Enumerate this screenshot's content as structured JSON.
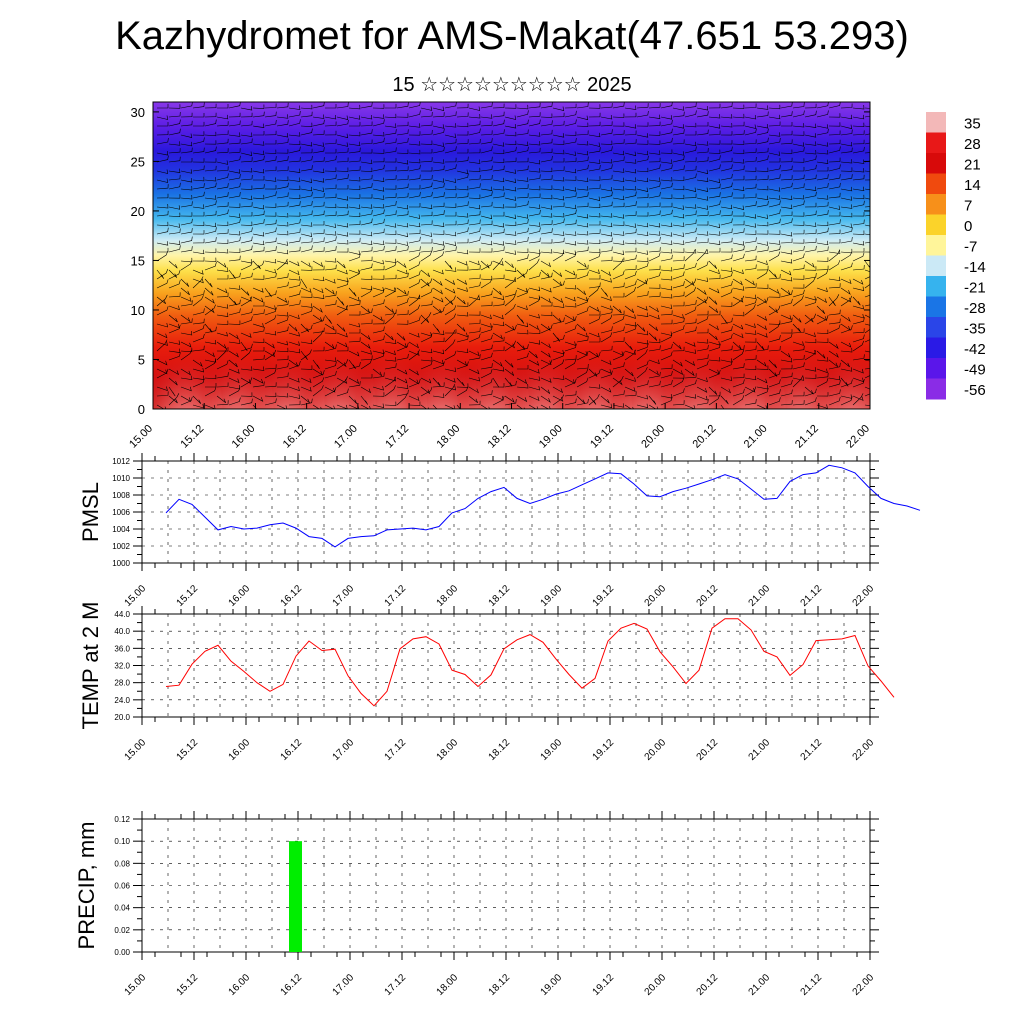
{
  "header": {
    "title": "Kazhydromet for AMS-Makat(47.651 53.293)",
    "subtitle": "15 ☆☆☆☆☆☆☆☆☆ 2025"
  },
  "chart_data": [
    {
      "type": "heatmap",
      "name": "temperature-cross-section",
      "x_labels": [
        "15.00",
        "15.12",
        "16.00",
        "16.12",
        "17.00",
        "17.12",
        "18.00",
        "18.12",
        "19.00",
        "19.12",
        "20.00",
        "20.12",
        "21.00",
        "21.12",
        "22.00"
      ],
      "y_ticks": [
        "0",
        "5",
        "10",
        "15",
        "20",
        "25",
        "30"
      ],
      "ylim": [
        0,
        31
      ],
      "colorbar_labels": [
        "35",
        "28",
        "21",
        "14",
        "7",
        "0",
        "-7",
        "-14",
        "-21",
        "-28",
        "-35",
        "-42",
        "-49",
        "-56"
      ],
      "colorbar_colors": [
        "#f3b8b8",
        "#e81818",
        "#d80a0a",
        "#f04a0e",
        "#f7901a",
        "#fbd32a",
        "#fff59a",
        "#cbe9f6",
        "#36b3ee",
        "#1a75e6",
        "#2a45e8",
        "#2a1ae6",
        "#5a16ea",
        "#8a2ce6"
      ],
      "wind_barbs": true
    },
    {
      "type": "line",
      "name": "pmsl",
      "ylabel": "PMSL",
      "ylim": [
        1000,
        1012
      ],
      "y_ticks": [
        "1000",
        "1002",
        "1004",
        "1006",
        "1008",
        "1010",
        "1012"
      ],
      "x_labels": [
        "15.00",
        "15.12",
        "16.00",
        "16.12",
        "17.00",
        "17.12",
        "18.00",
        "18.12",
        "19.00",
        "19.12",
        "20.00",
        "20.12",
        "21.00",
        "21.12",
        "22.00"
      ],
      "color": "#0000ff",
      "values": [
        1005.9,
        1007.5,
        1006.9,
        1005.4,
        1003.9,
        1004.3,
        1004.0,
        1004.1,
        1004.5,
        1004.7,
        1004.1,
        1003.1,
        1002.9,
        1001.9,
        1002.9,
        1003.1,
        1003.2,
        1003.9,
        1004.0,
        1004.1,
        1003.9,
        1004.3,
        1005.9,
        1006.4,
        1007.6,
        1008.4,
        1008.9,
        1007.6,
        1007.0,
        1007.5,
        1008.1,
        1008.5,
        1009.2,
        1009.9,
        1010.6,
        1010.5,
        1009.3,
        1007.9,
        1007.8,
        1008.4,
        1008.8,
        1009.3,
        1009.8,
        1010.4,
        1009.9,
        1008.7,
        1007.5,
        1007.6,
        1009.6,
        1010.4,
        1010.6,
        1011.5,
        1011.2,
        1010.6,
        1009.0,
        1007.6,
        1007.0,
        1006.7,
        1006.2
      ]
    },
    {
      "type": "line",
      "name": "temp-2m",
      "ylabel": "TEMP at 2 M",
      "ylim": [
        20,
        44
      ],
      "y_ticks": [
        "20.0",
        "24.0",
        "28.0",
        "32.0",
        "36.0",
        "40.0",
        "44.0"
      ],
      "x_labels": [
        "15.00",
        "15.12",
        "16.00",
        "16.12",
        "17.00",
        "17.12",
        "18.00",
        "18.12",
        "19.00",
        "19.12",
        "20.00",
        "20.12",
        "21.00",
        "21.12",
        "22.00"
      ],
      "color": "#ff0000",
      "values": [
        27.1,
        27.4,
        32.3,
        35.3,
        36.7,
        33.0,
        30.6,
        28.0,
        26.0,
        27.6,
        34.2,
        37.7,
        35.5,
        35.8,
        29.6,
        25.5,
        22.6,
        26.0,
        35.9,
        38.2,
        38.7,
        37.0,
        30.9,
        29.9,
        27.1,
        29.8,
        35.9,
        38.0,
        39.2,
        37.4,
        33.5,
        29.9,
        26.7,
        29.0,
        37.7,
        40.7,
        41.8,
        40.5,
        35.2,
        31.7,
        27.8,
        30.9,
        40.7,
        42.9,
        42.9,
        40.3,
        35.3,
        34.0,
        29.7,
        32.2,
        37.8,
        38.0,
        38.2,
        39.0,
        31.9,
        28.4,
        24.6
      ]
    },
    {
      "type": "bar",
      "name": "precip",
      "ylabel": "PRECIP, mm",
      "ylim": [
        0,
        0.12
      ],
      "y_ticks": [
        "0.00",
        "0.02",
        "0.04",
        "0.06",
        "0.08",
        "0.10",
        "0.12"
      ],
      "x_labels": [
        "15.00",
        "15.12",
        "16.00",
        "16.12",
        "17.00",
        "17.12",
        "18.00",
        "18.12",
        "19.00",
        "19.12",
        "20.00",
        "20.12",
        "21.00",
        "21.12",
        "22.00"
      ],
      "color": "#00ee00",
      "bars": [
        {
          "x": "16.12",
          "value": 0.1
        }
      ]
    }
  ]
}
